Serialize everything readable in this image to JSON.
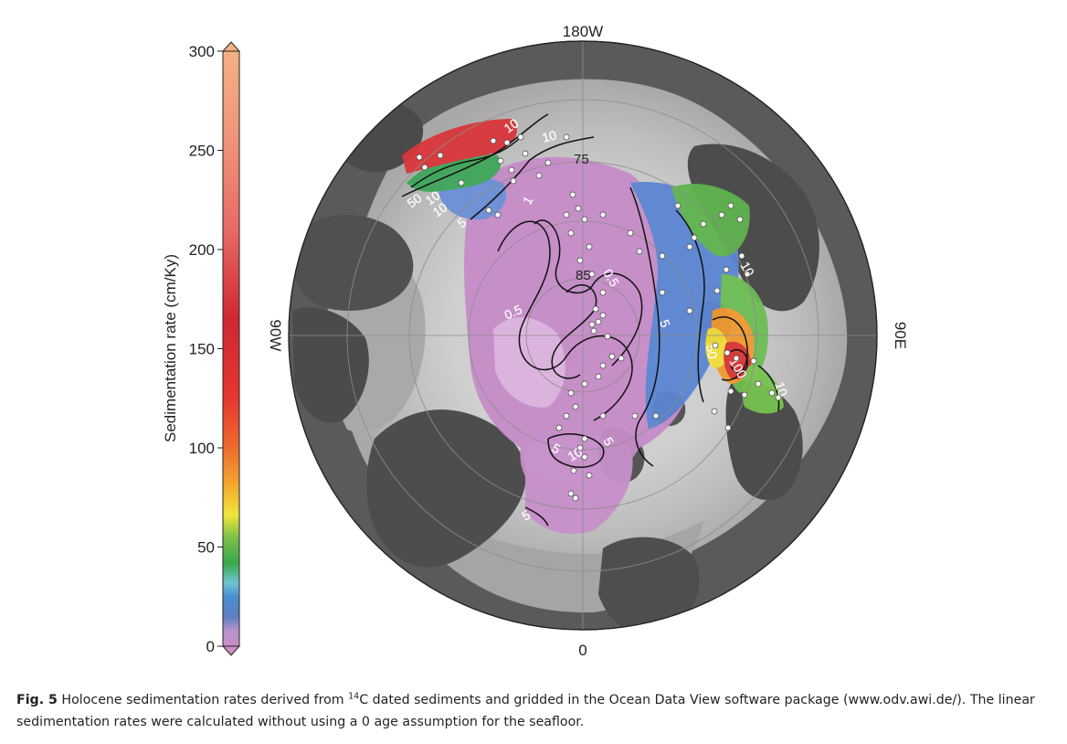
{
  "colorbar": {
    "label": "Sedimentation rate (cm/Ky)",
    "min": 0,
    "max": 300,
    "ticks": [
      {
        "value": 300,
        "label": "300"
      },
      {
        "value": 250,
        "label": "250"
      },
      {
        "value": 200,
        "label": "200"
      },
      {
        "value": 150,
        "label": "150"
      },
      {
        "value": 100,
        "label": "100"
      },
      {
        "value": 50,
        "label": "50"
      },
      {
        "value": 0,
        "label": "0"
      }
    ],
    "stops": [
      {
        "value": 0,
        "color": "#c98fc5"
      },
      {
        "value": 8,
        "color": "#b593cd"
      },
      {
        "value": 15,
        "color": "#5d7ec1"
      },
      {
        "value": 25,
        "color": "#4a8fd0"
      },
      {
        "value": 32,
        "color": "#6fc4cf"
      },
      {
        "value": 42,
        "color": "#3aa84a"
      },
      {
        "value": 55,
        "color": "#7dc04a"
      },
      {
        "value": 66,
        "color": "#f0e53a"
      },
      {
        "value": 82,
        "color": "#f3a62e"
      },
      {
        "value": 100,
        "color": "#ee6b2d"
      },
      {
        "value": 125,
        "color": "#e6372f"
      },
      {
        "value": 165,
        "color": "#cf2733"
      },
      {
        "value": 210,
        "color": "#e86a66"
      },
      {
        "value": 255,
        "color": "#ef9379"
      },
      {
        "value": 300,
        "color": "#f4b184"
      }
    ]
  },
  "map": {
    "longitude_labels": {
      "top": "180W",
      "bottom": "0",
      "left": "90W",
      "right": "90E"
    },
    "latitude_labels": [
      {
        "text": "75",
        "lat": 75
      },
      {
        "text": "85",
        "lat": 85
      }
    ],
    "contour_labels": [
      "10",
      "10",
      "10",
      "50",
      "10",
      "5",
      "1",
      "0.5",
      "0.5",
      "5",
      "10",
      "50",
      "100",
      "10",
      "5",
      "5",
      "10",
      "5"
    ],
    "colors": {
      "ocean": "#5a5a5a",
      "shelf_light": "#d4d4d4",
      "shelf_mid": "#b7b7b7",
      "land_dark": "#4d4d4d",
      "grid": "#8c8c8c",
      "contour": "#111111",
      "sample_point": "#ffffff"
    }
  },
  "caption": {
    "label": "Fig. 5",
    "text_before_sup": " Holocene sedimentation rates derived from ",
    "superscript": "14",
    "text_after_sup": "C dated sediments and gridded in the Ocean Data View software package (www.odv.awi.de/). The linear sedimentation rates were calculated without using a 0 age assumption for the seafloor."
  }
}
